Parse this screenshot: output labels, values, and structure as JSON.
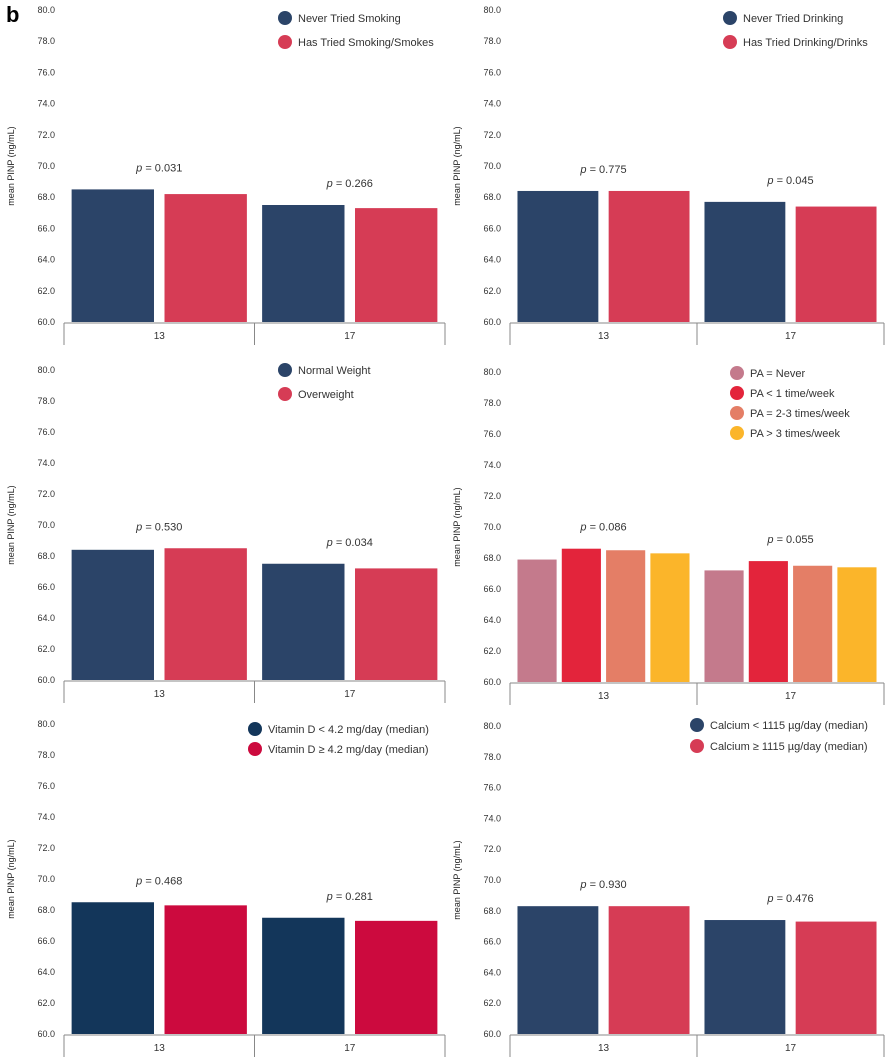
{
  "figure": {
    "panel_label": "b"
  },
  "chart_data": [
    {
      "type": "bar",
      "ylabel": "mean PINP (ng/mL)",
      "ylim": [
        60,
        80
      ],
      "yticks": [
        "60.0",
        "62.0",
        "64.0",
        "66.0",
        "68.0",
        "70.0",
        "72.0",
        "74.0",
        "76.0",
        "78.0",
        "80.0"
      ],
      "categories": [
        "13",
        "17"
      ],
      "series": [
        {
          "name": "Never Tried Smoking",
          "color": "#2b4468",
          "values": [
            68.5,
            67.5
          ]
        },
        {
          "name": "Has Tried Smoking/Smokes",
          "color": "#d63c55",
          "values": [
            68.2,
            67.3
          ]
        }
      ],
      "pvalues": [
        {
          "prefix": "p",
          "text": " = 0.031"
        },
        {
          "prefix": "p",
          "text": " = 0.266"
        }
      ],
      "legend": "top-center"
    },
    {
      "type": "bar",
      "ylabel": "mean PINP (ng/mL)",
      "ylim": [
        60,
        80
      ],
      "yticks": [
        "60.0",
        "62.0",
        "64.0",
        "66.0",
        "68.0",
        "70.0",
        "72.0",
        "74.0",
        "76.0",
        "78.0",
        "80.0"
      ],
      "categories": [
        "13",
        "17"
      ],
      "series": [
        {
          "name": "Never Tried Drinking",
          "color": "#2b4468",
          "values": [
            68.4,
            67.7
          ]
        },
        {
          "name": "Has Tried Drinking/Drinks",
          "color": "#d63c55",
          "values": [
            68.4,
            67.4
          ]
        }
      ],
      "pvalues": [
        {
          "prefix": "p",
          "text": " = 0.775"
        },
        {
          "prefix": "p",
          "text": " = 0.045"
        }
      ],
      "legend": "top-center"
    },
    {
      "type": "bar",
      "ylabel": "mean PINP (ng/mL)",
      "ylim": [
        60,
        80
      ],
      "yticks": [
        "60.0",
        "62.0",
        "64.0",
        "66.0",
        "68.0",
        "70.0",
        "72.0",
        "74.0",
        "76.0",
        "78.0",
        "80.0"
      ],
      "categories": [
        "13",
        "17"
      ],
      "series": [
        {
          "name": "Normal Weight",
          "color": "#2b4468",
          "values": [
            68.4,
            67.5
          ]
        },
        {
          "name": "Overweight",
          "color": "#d63c55",
          "values": [
            68.5,
            67.2
          ]
        }
      ],
      "pvalues": [
        {
          "prefix": "p",
          "text": " = 0.530"
        },
        {
          "prefix": "p",
          "text": " = 0.034"
        }
      ],
      "legend": "top-center"
    },
    {
      "type": "bar",
      "ylabel": "mean PINP (ng/mL)",
      "ylim": [
        60,
        80
      ],
      "yticks": [
        "60.0",
        "62.0",
        "64.0",
        "66.0",
        "68.0",
        "70.0",
        "72.0",
        "74.0",
        "76.0",
        "78.0",
        "80.0"
      ],
      "categories": [
        "13",
        "17"
      ],
      "series": [
        {
          "name": "PA = Never",
          "color": "#c47a8c",
          "values": [
            67.9,
            67.2
          ]
        },
        {
          "name": "PA < 1 time/week",
          "color": "#e3243b",
          "values": [
            68.6,
            67.8
          ]
        },
        {
          "name": "PA = 2-3 times/week",
          "color": "#e47e66",
          "values": [
            68.5,
            67.5
          ]
        },
        {
          "name": "PA > 3 times/week",
          "color": "#fbb52a",
          "values": [
            68.3,
            67.4
          ]
        }
      ],
      "pvalues": [
        {
          "prefix": "p",
          "text": " = 0.086"
        },
        {
          "prefix": "p",
          "text": " = 0.055"
        }
      ],
      "legend": "top-right"
    },
    {
      "type": "bar",
      "ylabel": "mean PINP (ng/mL)",
      "ylim": [
        60,
        80
      ],
      "yticks": [
        "60.0",
        "62.0",
        "64.0",
        "66.0",
        "68.0",
        "70.0",
        "72.0",
        "74.0",
        "76.0",
        "78.0",
        "80.0"
      ],
      "categories": [
        "13",
        "17"
      ],
      "series": [
        {
          "name": "Vitamin D < 4.2 mg/day (median)",
          "color": "#13365a",
          "values": [
            68.5,
            67.5
          ]
        },
        {
          "name": "Vitamin D ≥ 4.2 mg/day (median)",
          "color": "#cc0a3e",
          "values": [
            68.3,
            67.3
          ]
        }
      ],
      "pvalues": [
        {
          "prefix": "p",
          "text": " = 0.468"
        },
        {
          "prefix": "p",
          "text": " = 0.281"
        }
      ],
      "legend": "top-center"
    },
    {
      "type": "bar",
      "ylabel": "mean PINP (ng/mL)",
      "ylim": [
        60,
        80
      ],
      "yticks": [
        "60.0",
        "62.0",
        "64.0",
        "66.0",
        "68.0",
        "70.0",
        "72.0",
        "74.0",
        "76.0",
        "78.0",
        "80.0"
      ],
      "categories": [
        "13",
        "17"
      ],
      "series": [
        {
          "name": "Calcium < 1115 µg/day (median)",
          "color": "#2b4468",
          "values": [
            68.3,
            67.4
          ]
        },
        {
          "name": "Calcium ≥ 1115 µg/day (median)",
          "color": "#d63c55",
          "values": [
            68.3,
            67.3
          ]
        }
      ],
      "pvalues": [
        {
          "prefix": "p",
          "text": " = 0.930"
        },
        {
          "prefix": "p",
          "text": " = 0.476"
        }
      ],
      "legend": "top-right"
    }
  ]
}
